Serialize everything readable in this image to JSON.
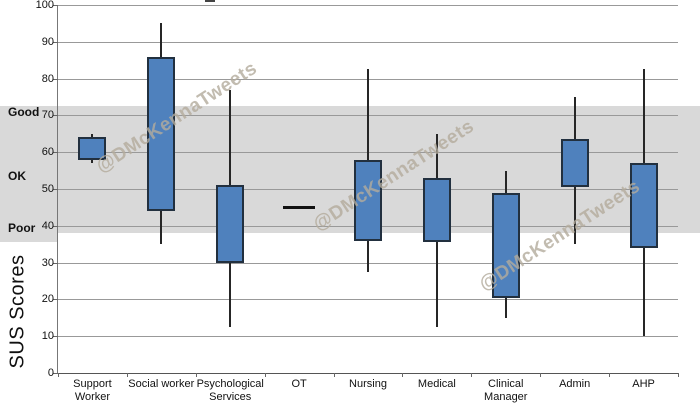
{
  "chart_data": {
    "type": "box",
    "title": "",
    "ylabel": "SUS Scores",
    "ylim": [
      0,
      100
    ],
    "ytick_interval": 10,
    "grid": true,
    "legend": "none",
    "categories": [
      "Support Worker",
      "Social worker",
      "Psychological Services",
      "OT",
      "Nursing",
      "Medical",
      "Clinical Manager",
      "Admin",
      "AHP"
    ],
    "boxes": [
      {
        "category": "Support Worker",
        "label_lines": [
          "Support",
          "Worker"
        ],
        "min": 57,
        "q1": 58,
        "q3": 64,
        "max": 65
      },
      {
        "category": "Social worker",
        "label_lines": [
          "Social worker"
        ],
        "min": 35,
        "q1": 44,
        "q3": 86,
        "max": 95
      },
      {
        "category": "Psychological Services",
        "label_lines": [
          "Psychological",
          "Services"
        ],
        "min": 12.5,
        "q1": 30,
        "q3": 51,
        "max": 77
      },
      {
        "category": "OT",
        "label_lines": [
          "OT"
        ],
        "value": 45
      },
      {
        "category": "Nursing",
        "label_lines": [
          "Nursing"
        ],
        "min": 27.5,
        "q1": 36,
        "q3": 58,
        "max": 82.5
      },
      {
        "category": "Medical",
        "label_lines": [
          "Medical"
        ],
        "min": 12.5,
        "q1": 35.5,
        "q3": 53,
        "max": 65
      },
      {
        "category": "Clinical Manager",
        "label_lines": [
          "Clinical",
          "Manager"
        ],
        "min": 15,
        "q1": 20.5,
        "q3": 49,
        "max": 55
      },
      {
        "category": "Admin",
        "label_lines": [
          "Admin"
        ],
        "min": 35,
        "q1": 50.5,
        "q3": 63.5,
        "max": 75
      },
      {
        "category": "AHP",
        "label_lines": [
          "AHP"
        ],
        "min": 10,
        "q1": 34,
        "q3": 57,
        "max": 82.5
      }
    ],
    "acceptability_band": {
      "from": 38,
      "to": 72.5,
      "labels": [
        {
          "text": "Good",
          "at": 71
        },
        {
          "text": "OK",
          "at": 53.5
        },
        {
          "text": "Poor",
          "at": 39.5
        }
      ]
    },
    "watermark_text": "@DMcKennaTweets",
    "colors": {
      "box_fill": "#4f81bd",
      "box_border": "#22303f",
      "whisker": "#262626",
      "band": "#d9d9d9",
      "gridline": "#999999",
      "axis": "#666666",
      "watermark": "#b4ac9d"
    }
  }
}
